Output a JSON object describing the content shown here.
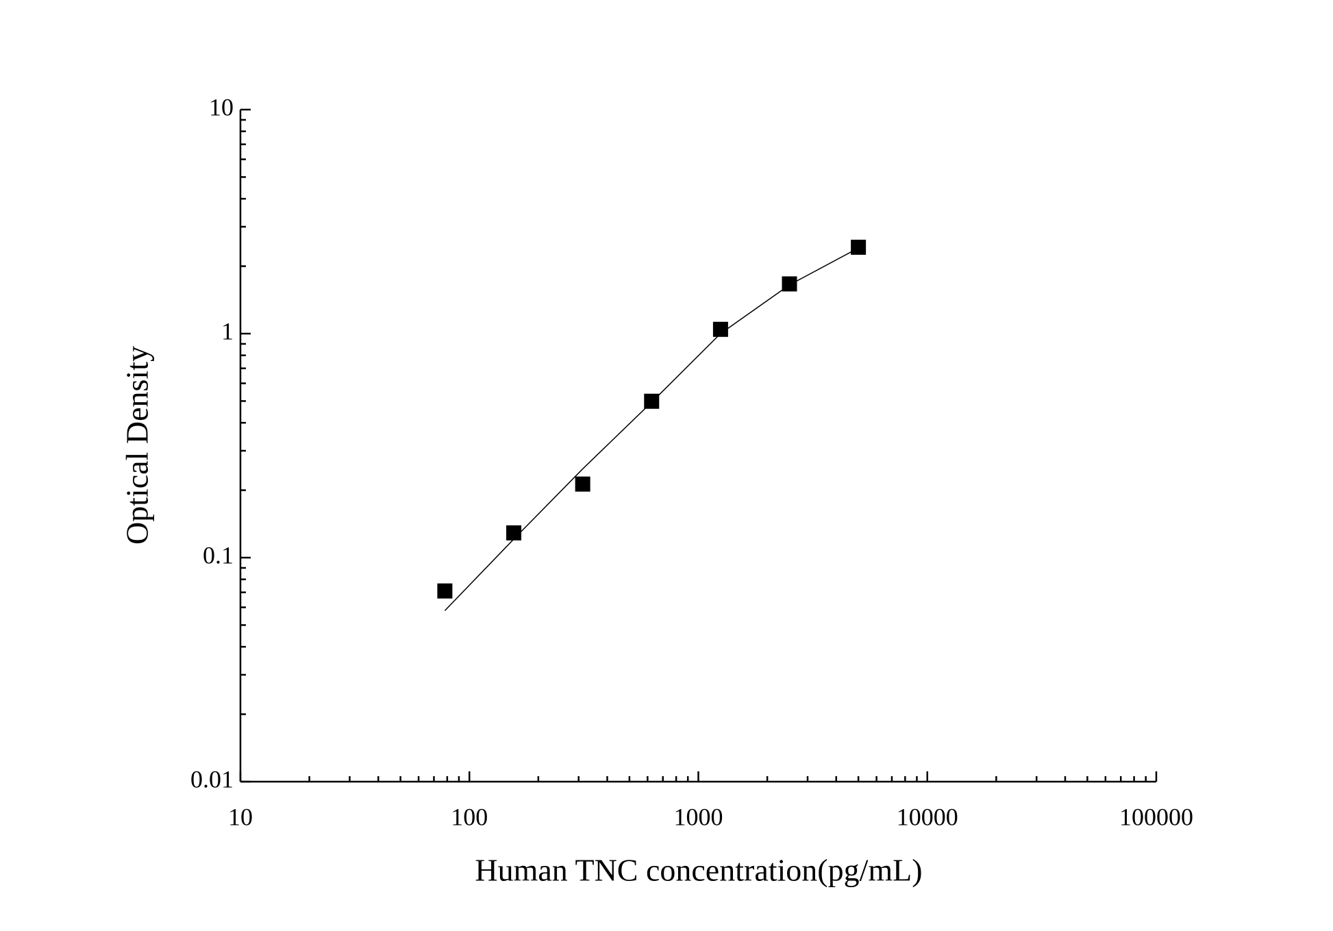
{
  "chart_data": {
    "type": "scatter",
    "x_label": "Human TNC concentration(pg/mL)",
    "y_label": "Optical Density",
    "x": [
      78.125,
      156.25,
      312.5,
      625,
      1250,
      2500,
      5000
    ],
    "series": [
      {
        "values": [
          0.071,
          0.129,
          0.213,
          0.499,
          1.045,
          1.667,
          2.43
        ],
        "color": "#000000",
        "marker": "square"
      },
      {
        "values": [
          0.058,
          0.121,
          0.249,
          0.494,
          1.0,
          1.65,
          2.41
        ],
        "color": "#000000",
        "marker": "line"
      }
    ],
    "xlim": [
      10,
      100000
    ],
    "ylim": [
      0.01,
      10
    ],
    "xticks": [
      10,
      100,
      1000,
      10000,
      100000
    ],
    "yticks": [
      0.01,
      0.1,
      1,
      10
    ],
    "xscale": "log",
    "yscale": "log",
    "grid": false
  }
}
